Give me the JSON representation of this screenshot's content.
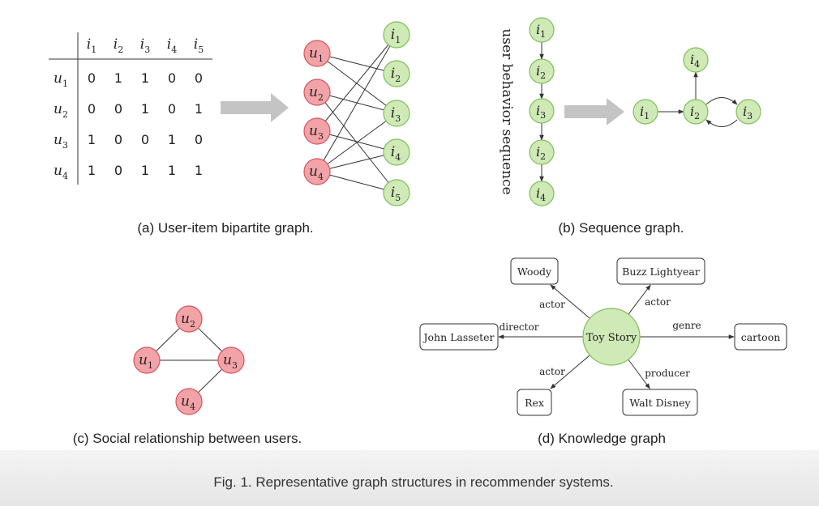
{
  "panels": {
    "a": {
      "caption": "(a) User-item bipartite graph.",
      "matrix": {
        "items": [
          [
            "i",
            "1"
          ],
          [
            "i",
            "2"
          ],
          [
            "i",
            "3"
          ],
          [
            "i",
            "4"
          ],
          [
            "i",
            "5"
          ]
        ],
        "users": [
          [
            "u",
            "1"
          ],
          [
            "u",
            "2"
          ],
          [
            "u",
            "3"
          ],
          [
            "u",
            "4"
          ]
        ],
        "values": [
          [
            0,
            1,
            1,
            0,
            0
          ],
          [
            0,
            0,
            1,
            0,
            1
          ],
          [
            1,
            0,
            0,
            1,
            0
          ],
          [
            1,
            0,
            1,
            1,
            1
          ]
        ]
      },
      "user_nodes": [
        [
          "u",
          "1"
        ],
        [
          "u",
          "2"
        ],
        [
          "u",
          "3"
        ],
        [
          "u",
          "4"
        ]
      ],
      "item_nodes": [
        [
          "i",
          "1"
        ],
        [
          "i",
          "2"
        ],
        [
          "i",
          "3"
        ],
        [
          "i",
          "4"
        ],
        [
          "i",
          "5"
        ]
      ]
    },
    "b": {
      "caption": "(b) Sequence graph.",
      "vertical_label": "user behavior sequence",
      "sequence": [
        [
          "i",
          "1"
        ],
        [
          "i",
          "2"
        ],
        [
          "i",
          "3"
        ],
        [
          "i",
          "2"
        ],
        [
          "i",
          "4"
        ]
      ],
      "graph_nodes": [
        [
          "i",
          "1"
        ],
        [
          "i",
          "2"
        ],
        [
          "i",
          "3"
        ],
        [
          "i",
          "4"
        ]
      ]
    },
    "c": {
      "caption": "(c) Social relationship between users.",
      "nodes": [
        [
          "u",
          "1"
        ],
        [
          "u",
          "2"
        ],
        [
          "u",
          "3"
        ],
        [
          "u",
          "4"
        ]
      ]
    },
    "d": {
      "caption": "(d) Knowledge graph",
      "center": "Toy Story",
      "entities": [
        "Woody",
        "Buzz Lightyear",
        "John Lasseter",
        "cartoon",
        "Rex",
        "Walt Disney"
      ],
      "relations": [
        "actor",
        "actor",
        "director",
        "genre",
        "actor",
        "producer"
      ]
    }
  },
  "figure_caption": "Fig. 1.  Representative graph structures in recommender systems.",
  "colors": {
    "user_fill": "#f2a3a8",
    "user_stroke": "#d9535d",
    "item_fill": "#cfe9b7",
    "item_stroke": "#7fbf5a",
    "arrow_gray": "#c4c4c4"
  }
}
